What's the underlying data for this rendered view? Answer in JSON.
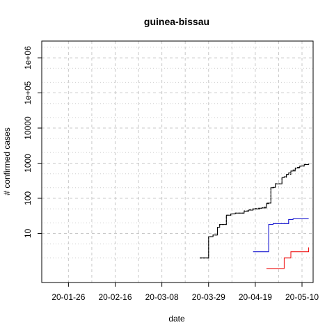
{
  "chart_data": {
    "type": "line",
    "title": "guinea-bissau",
    "xlabel": "date",
    "ylabel": "# confirmed cases",
    "y_scale": "log",
    "grid": true,
    "xlim": [
      "2020-01-14",
      "2020-05-15"
    ],
    "ylim": [
      0.4,
      3000000
    ],
    "x_ticks": [
      {
        "date": "2020-01-26",
        "label": "20-01-26"
      },
      {
        "date": "2020-02-16",
        "label": "20-02-16"
      },
      {
        "date": "2020-03-08",
        "label": "20-03-08"
      },
      {
        "date": "2020-03-29",
        "label": "20-03-29"
      },
      {
        "date": "2020-04-19",
        "label": "20-04-19"
      },
      {
        "date": "2020-05-10",
        "label": "20-05-10"
      }
    ],
    "y_ticks": [
      {
        "value": 10,
        "label": "10"
      },
      {
        "value": 100,
        "label": "100"
      },
      {
        "value": 1000,
        "label": "1000"
      },
      {
        "value": 10000,
        "label": "10000"
      },
      {
        "value": 100000,
        "label": "1e+05"
      },
      {
        "value": 1000000,
        "label": "1e+06"
      }
    ],
    "series": [
      {
        "color": "#000000",
        "dash": "",
        "points": [
          [
            "2020-03-25",
            2
          ],
          [
            "2020-03-28",
            2
          ],
          [
            "2020-03-29",
            8
          ],
          [
            "2020-03-30",
            8
          ],
          [
            "2020-03-31",
            9
          ],
          [
            "2020-04-01",
            9
          ],
          [
            "2020-04-02",
            15
          ],
          [
            "2020-04-03",
            18
          ],
          [
            "2020-04-04",
            18
          ],
          [
            "2020-04-05",
            18
          ],
          [
            "2020-04-06",
            33
          ],
          [
            "2020-04-07",
            33
          ],
          [
            "2020-04-08",
            36
          ],
          [
            "2020-04-09",
            36
          ],
          [
            "2020-04-10",
            38
          ],
          [
            "2020-04-11",
            38
          ],
          [
            "2020-04-12",
            38
          ],
          [
            "2020-04-13",
            38
          ],
          [
            "2020-04-14",
            43
          ],
          [
            "2020-04-15",
            43
          ],
          [
            "2020-04-16",
            46
          ],
          [
            "2020-04-17",
            46
          ],
          [
            "2020-04-18",
            50
          ],
          [
            "2020-04-19",
            50
          ],
          [
            "2020-04-20",
            50
          ],
          [
            "2020-04-21",
            52
          ],
          [
            "2020-04-22",
            53
          ],
          [
            "2020-04-23",
            53
          ],
          [
            "2020-04-24",
            70
          ],
          [
            "2020-04-25",
            73
          ],
          [
            "2020-04-26",
            200
          ],
          [
            "2020-04-27",
            205
          ],
          [
            "2020-04-28",
            257
          ],
          [
            "2020-04-29",
            257
          ],
          [
            "2020-04-30",
            257
          ],
          [
            "2020-05-01",
            391
          ],
          [
            "2020-05-02",
            410
          ],
          [
            "2020-05-03",
            475
          ],
          [
            "2020-05-04",
            530
          ],
          [
            "2020-05-05",
            594
          ],
          [
            "2020-05-06",
            641
          ],
          [
            "2020-05-07",
            726
          ],
          [
            "2020-05-08",
            761
          ],
          [
            "2020-05-09",
            820
          ],
          [
            "2020-05-10",
            836
          ],
          [
            "2020-05-11",
            913
          ],
          [
            "2020-05-12",
            913
          ],
          [
            "2020-05-13",
            969
          ]
        ]
      },
      {
        "color": "#000000",
        "dash": "3,2",
        "points": [
          [
            "2020-03-25",
            2
          ],
          [
            "2020-03-28",
            2
          ],
          [
            "2020-03-29",
            8
          ],
          [
            "2020-03-31",
            9
          ],
          [
            "2020-04-02",
            15
          ],
          [
            "2020-04-03",
            18
          ],
          [
            "2020-04-05",
            18
          ],
          [
            "2020-04-06",
            33
          ],
          [
            "2020-04-08",
            36
          ],
          [
            "2020-04-10",
            38
          ],
          [
            "2020-04-13",
            38
          ],
          [
            "2020-04-14",
            44
          ],
          [
            "2020-04-16",
            47
          ],
          [
            "2020-04-18",
            51
          ],
          [
            "2020-04-20",
            52
          ],
          [
            "2020-04-22",
            54
          ],
          [
            "2020-04-23",
            56
          ],
          [
            "2020-04-24",
            73
          ],
          [
            "2020-04-26",
            200
          ],
          [
            "2020-04-28",
            260
          ],
          [
            "2020-05-01",
            395
          ],
          [
            "2020-05-03",
            480
          ],
          [
            "2020-05-05",
            600
          ],
          [
            "2020-05-07",
            730
          ],
          [
            "2020-05-09",
            822
          ],
          [
            "2020-05-11",
            915
          ],
          [
            "2020-05-13",
            970
          ]
        ]
      },
      {
        "color": "#0000cc",
        "dash": "",
        "points": [
          [
            "2020-04-18",
            3
          ],
          [
            "2020-04-19",
            3
          ],
          [
            "2020-04-20",
            3
          ],
          [
            "2020-04-21",
            3
          ],
          [
            "2020-04-22",
            3
          ],
          [
            "2020-04-23",
            3
          ],
          [
            "2020-04-24",
            3
          ],
          [
            "2020-04-25",
            18
          ],
          [
            "2020-04-26",
            18
          ],
          [
            "2020-04-27",
            19
          ],
          [
            "2020-04-28",
            19
          ],
          [
            "2020-04-29",
            19
          ],
          [
            "2020-04-30",
            19
          ],
          [
            "2020-05-01",
            19
          ],
          [
            "2020-05-02",
            19
          ],
          [
            "2020-05-03",
            19
          ],
          [
            "2020-05-04",
            25
          ],
          [
            "2020-05-05",
            25
          ],
          [
            "2020-05-06",
            26
          ],
          [
            "2020-05-07",
            26
          ],
          [
            "2020-05-08",
            26
          ],
          [
            "2020-05-09",
            26
          ],
          [
            "2020-05-10",
            26
          ],
          [
            "2020-05-11",
            26
          ],
          [
            "2020-05-12",
            26
          ],
          [
            "2020-05-13",
            26
          ]
        ]
      },
      {
        "color": "#ee0000",
        "dash": "",
        "points": [
          [
            "2020-04-24",
            1
          ],
          [
            "2020-04-25",
            1
          ],
          [
            "2020-04-26",
            1
          ],
          [
            "2020-04-27",
            1
          ],
          [
            "2020-04-28",
            1
          ],
          [
            "2020-04-29",
            1
          ],
          [
            "2020-04-30",
            1
          ],
          [
            "2020-05-01",
            1
          ],
          [
            "2020-05-02",
            2
          ],
          [
            "2020-05-03",
            2
          ],
          [
            "2020-05-04",
            2
          ],
          [
            "2020-05-05",
            3
          ],
          [
            "2020-05-06",
            3
          ],
          [
            "2020-05-07",
            3
          ],
          [
            "2020-05-08",
            3
          ],
          [
            "2020-05-09",
            3
          ],
          [
            "2020-05-10",
            3
          ],
          [
            "2020-05-11",
            3
          ],
          [
            "2020-05-12",
            3
          ],
          [
            "2020-05-13",
            4
          ]
        ]
      }
    ]
  }
}
